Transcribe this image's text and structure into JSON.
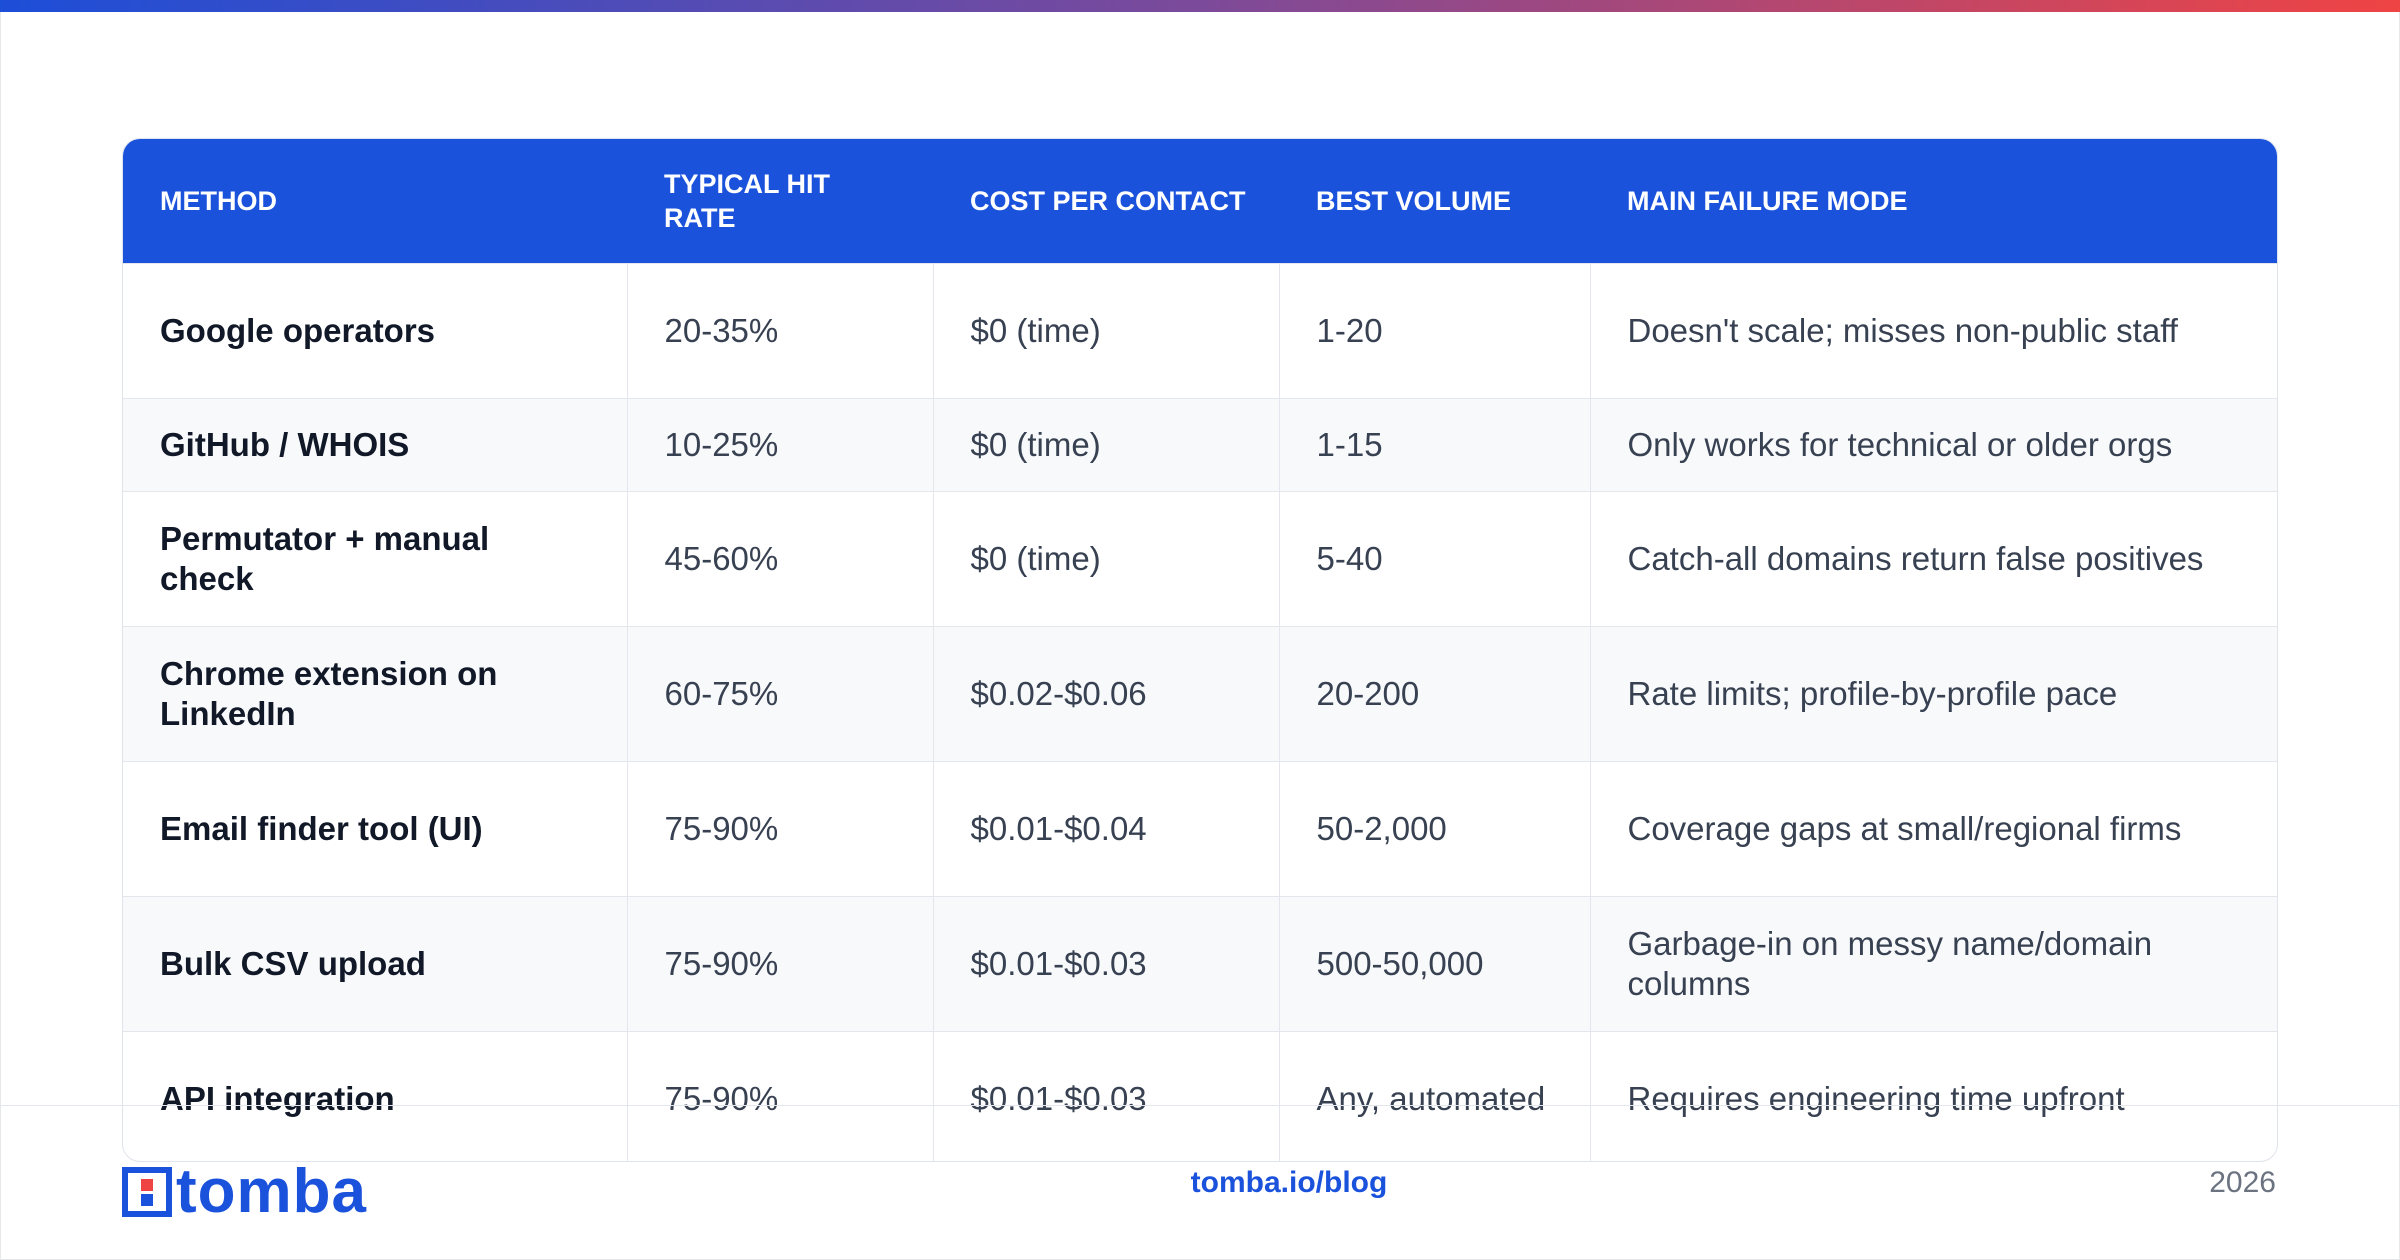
{
  "table": {
    "columns": [
      "METHOD",
      "TYPICAL HIT RATE",
      "COST PER CONTACT",
      "BEST VOLUME",
      "MAIN FAILURE MODE"
    ],
    "rows": [
      [
        "Google operators",
        "20-35%",
        "$0 (time)",
        "1-20",
        "Doesn't scale; misses non-public staff"
      ],
      [
        "GitHub / WHOIS",
        "10-25%",
        "$0 (time)",
        "1-15",
        "Only works for technical or older orgs"
      ],
      [
        "Permutator + manual check",
        "45-60%",
        "$0 (time)",
        "5-40",
        "Catch-all domains return false positives"
      ],
      [
        "Chrome extension on LinkedIn",
        "60-75%",
        "$0.02-$0.06",
        "20-200",
        "Rate limits; profile-by-profile pace"
      ],
      [
        "Email finder tool (UI)",
        "75-90%",
        "$0.01-$0.04",
        "50-2,000",
        "Coverage gaps at small/regional firms"
      ],
      [
        "Bulk CSV upload",
        "75-90%",
        "$0.01-$0.03",
        "500-50,000",
        "Garbage-in on messy name/domain columns"
      ],
      [
        "API integration",
        "75-90%",
        "$0.01-$0.03",
        "Any, automated",
        "Requires engineering time upfront"
      ]
    ]
  },
  "footer": {
    "logo": "tomba",
    "link": "tomba.io/blog",
    "year": "2026"
  }
}
